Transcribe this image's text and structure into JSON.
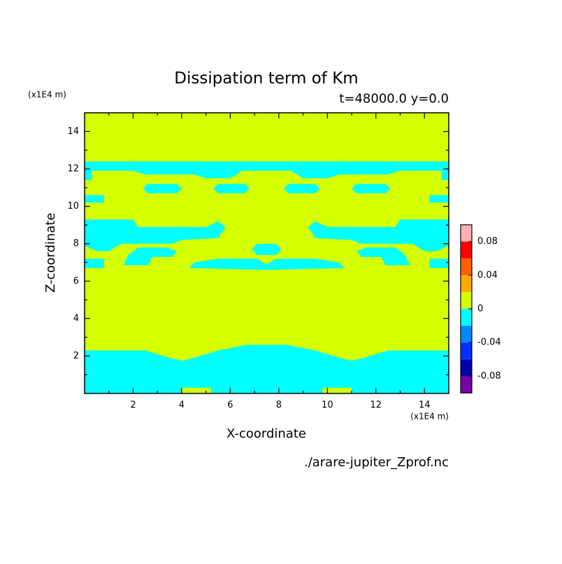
{
  "chart_data": {
    "type": "contour",
    "title": "Dissipation term of Km",
    "subtitle": "t=48000.0 y=0.0",
    "x_label": "X-coordinate",
    "y_label": "Z-coordinate",
    "x_unit": "(x1E4 m)",
    "y_unit": "(x1E4 m)",
    "footer": "./arare-jupiter_Zprof.nc",
    "xlim": [
      0,
      15
    ],
    "ylim": [
      0,
      15
    ],
    "xticks": [
      2,
      4,
      6,
      8,
      10,
      12,
      14
    ],
    "yticks": [
      2,
      4,
      6,
      8,
      10,
      12,
      14
    ],
    "xminorticks": [
      1,
      3,
      5,
      7,
      9,
      11,
      13,
      15
    ],
    "yminorticks": [
      1,
      3,
      5,
      7,
      9,
      11,
      13,
      15
    ],
    "background_level": 0.01,
    "regions": [
      {
        "level": -0.01,
        "polygon": [
          [
            0,
            0
          ],
          [
            15,
            0
          ],
          [
            15,
            2.3
          ],
          [
            12.5,
            2.3
          ],
          [
            12,
            2.1
          ],
          [
            11.5,
            1.9
          ],
          [
            11,
            1.75
          ],
          [
            10.5,
            1.9
          ],
          [
            9.5,
            2.3
          ],
          [
            8.3,
            2.6
          ],
          [
            6.7,
            2.6
          ],
          [
            5.5,
            2.3
          ],
          [
            4.5,
            1.9
          ],
          [
            4,
            1.75
          ],
          [
            3.5,
            1.9
          ],
          [
            3,
            2.1
          ],
          [
            2.5,
            2.3
          ],
          [
            0,
            2.3
          ]
        ]
      },
      {
        "level": 0.01,
        "polygon": [
          [
            4,
            0
          ],
          [
            5.2,
            0
          ],
          [
            5.2,
            0.3
          ],
          [
            4,
            0.3
          ]
        ]
      },
      {
        "level": 0.01,
        "polygon": [
          [
            9.8,
            0
          ],
          [
            11,
            0
          ],
          [
            11,
            0.3
          ],
          [
            9.8,
            0.3
          ]
        ]
      },
      {
        "level": -0.01,
        "polygon": [
          [
            0,
            11.4
          ],
          [
            0.3,
            11.4
          ],
          [
            0.3,
            11.9
          ],
          [
            2,
            11.9
          ],
          [
            2.5,
            11.7
          ],
          [
            4.5,
            11.7
          ],
          [
            5,
            11.5
          ],
          [
            6,
            11.5
          ],
          [
            6.5,
            11.9
          ],
          [
            8.5,
            11.9
          ],
          [
            9,
            11.5
          ],
          [
            10,
            11.5
          ],
          [
            10.5,
            11.7
          ],
          [
            12.5,
            11.7
          ],
          [
            13,
            11.9
          ],
          [
            14.7,
            11.9
          ],
          [
            14.7,
            11.4
          ],
          [
            15,
            11.4
          ],
          [
            15,
            12.4
          ],
          [
            0,
            12.4
          ]
        ]
      },
      {
        "level": -0.01,
        "polygon": [
          [
            2.6,
            10.7
          ],
          [
            3.8,
            10.7
          ],
          [
            4,
            10.95
          ],
          [
            3.8,
            11.2
          ],
          [
            2.6,
            11.2
          ],
          [
            2.4,
            10.95
          ]
        ]
      },
      {
        "level": -0.01,
        "polygon": [
          [
            5.5,
            10.7
          ],
          [
            6.6,
            10.7
          ],
          [
            6.8,
            10.95
          ],
          [
            6.6,
            11.2
          ],
          [
            5.5,
            11.2
          ],
          [
            5.3,
            10.95
          ]
        ]
      },
      {
        "level": -0.01,
        "polygon": [
          [
            8.4,
            10.7
          ],
          [
            9.5,
            10.7
          ],
          [
            9.7,
            10.95
          ],
          [
            9.5,
            11.2
          ],
          [
            8.4,
            11.2
          ],
          [
            8.2,
            10.95
          ]
        ]
      },
      {
        "level": -0.01,
        "polygon": [
          [
            11.2,
            10.7
          ],
          [
            12.4,
            10.7
          ],
          [
            12.6,
            10.95
          ],
          [
            12.4,
            11.2
          ],
          [
            11.2,
            11.2
          ],
          [
            11,
            10.95
          ]
        ]
      },
      {
        "level": -0.01,
        "polygon": [
          [
            0,
            10.2
          ],
          [
            0.8,
            10.2
          ],
          [
            0.8,
            10.6
          ],
          [
            0,
            10.6
          ]
        ]
      },
      {
        "level": -0.01,
        "polygon": [
          [
            14.2,
            10.2
          ],
          [
            15,
            10.2
          ],
          [
            15,
            10.6
          ],
          [
            14.2,
            10.6
          ]
        ]
      },
      {
        "level": -0.01,
        "polygon": [
          [
            0,
            7.9
          ],
          [
            0,
            9.3
          ],
          [
            2,
            9.3
          ],
          [
            2.2,
            8.9
          ],
          [
            5,
            8.9
          ],
          [
            5.5,
            9.2
          ],
          [
            5.8,
            8.9
          ],
          [
            5.5,
            8.3
          ],
          [
            4,
            8.2
          ],
          [
            3.6,
            8
          ],
          [
            1.5,
            8
          ],
          [
            1,
            7.6
          ],
          [
            0.5,
            7.6
          ]
        ]
      },
      {
        "level": -0.01,
        "polygon": [
          [
            15,
            7.9
          ],
          [
            15,
            9.3
          ],
          [
            13,
            9.3
          ],
          [
            12.8,
            8.9
          ],
          [
            10,
            8.9
          ],
          [
            9.5,
            9.2
          ],
          [
            9.2,
            8.9
          ],
          [
            9.5,
            8.3
          ],
          [
            11,
            8.2
          ],
          [
            11.4,
            8
          ],
          [
            13.5,
            8
          ],
          [
            14,
            7.6
          ],
          [
            14.5,
            7.6
          ]
        ]
      },
      {
        "level": -0.01,
        "polygon": [
          [
            7.1,
            7.4
          ],
          [
            7.9,
            7.4
          ],
          [
            8.1,
            7.7
          ],
          [
            7.9,
            8
          ],
          [
            7.1,
            8
          ],
          [
            6.9,
            7.7
          ]
        ]
      },
      {
        "level": -0.01,
        "polygon": [
          [
            1.6,
            6.85
          ],
          [
            2.6,
            6.85
          ],
          [
            2.8,
            7.3
          ],
          [
            3.6,
            7.3
          ],
          [
            3.8,
            7.6
          ],
          [
            3.4,
            7.8
          ],
          [
            2.2,
            7.8
          ],
          [
            1.8,
            7.4
          ]
        ]
      },
      {
        "level": -0.01,
        "polygon": [
          [
            13.4,
            6.85
          ],
          [
            12.4,
            6.85
          ],
          [
            12.2,
            7.3
          ],
          [
            11.4,
            7.3
          ],
          [
            11.2,
            7.6
          ],
          [
            11.6,
            7.8
          ],
          [
            12.8,
            7.8
          ],
          [
            13.2,
            7.4
          ]
        ]
      },
      {
        "level": -0.01,
        "polygon": [
          [
            0,
            6.7
          ],
          [
            0.8,
            6.7
          ],
          [
            0.8,
            7.2
          ],
          [
            0,
            7.2
          ]
        ]
      },
      {
        "level": -0.01,
        "polygon": [
          [
            14.2,
            6.7
          ],
          [
            15,
            6.7
          ],
          [
            15,
            7.2
          ],
          [
            14.2,
            7.2
          ]
        ]
      },
      {
        "level": -0.01,
        "polygon": [
          [
            4.3,
            6.7
          ],
          [
            7.5,
            6.6
          ],
          [
            10.7,
            6.7
          ],
          [
            10.5,
            7
          ],
          [
            9.5,
            7.2
          ],
          [
            7.9,
            7.2
          ],
          [
            7.5,
            6.9
          ],
          [
            7.1,
            7.2
          ],
          [
            5.5,
            7.2
          ],
          [
            4.5,
            7
          ]
        ]
      }
    ],
    "colorbar": {
      "levels": [
        -0.1,
        -0.08,
        -0.06,
        -0.04,
        -0.02,
        0,
        0.02,
        0.04,
        0.06,
        0.08,
        0.1
      ],
      "colors": [
        "#7a00a8",
        "#0000a8",
        "#0030ff",
        "#0088ff",
        "#00ffff",
        "#d4ff00",
        "#ffaa00",
        "#ff6000",
        "#ff0000",
        "#ffb0b0"
      ],
      "ticks": [
        -0.08,
        -0.04,
        0,
        0.04,
        0.08
      ]
    }
  }
}
